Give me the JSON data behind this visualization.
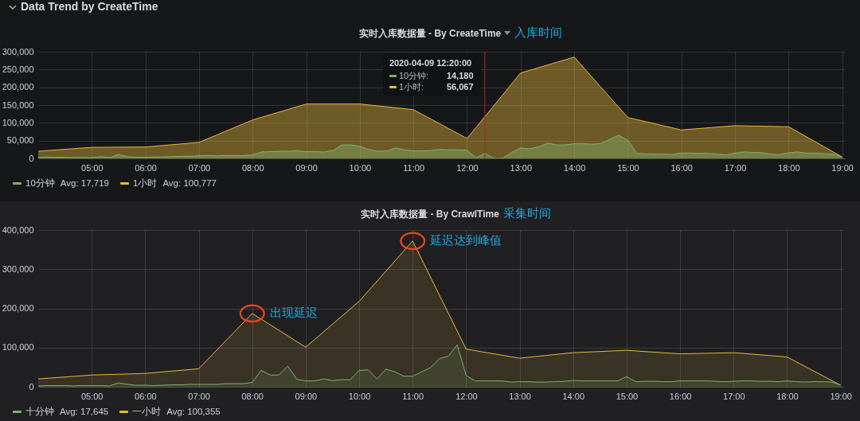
{
  "chart_data": [
    {
      "type": "area",
      "title": "实时入库数据量 - By CreateTime",
      "annotations": [
        "Data Trend by CreateTime",
        "入库时间",
        "Avg: 17,719",
        "Avg: 100,777",
        "10分钟:",
        "14,180",
        "1小时:",
        "56,067"
      ],
      "series": [
        {
          "name": "10分钟",
          "color": "#7eb26d",
          "x": [
            4,
            4.167,
            4.333,
            4.5,
            4.667,
            4.833,
            5,
            5.167,
            5.333,
            5.5,
            5.667,
            5.833,
            6,
            6.167,
            6.333,
            6.5,
            6.667,
            6.833,
            7,
            7.167,
            7.333,
            7.5,
            7.667,
            7.833,
            8,
            8.167,
            8.333,
            8.5,
            8.667,
            8.833,
            9,
            9.167,
            9.333,
            9.5,
            9.667,
            9.833,
            10,
            10.167,
            10.333,
            10.5,
            10.667,
            10.833,
            11,
            11.167,
            11.333,
            11.5,
            11.667,
            11.833,
            12,
            12.167,
            12.333,
            12.5,
            12.667,
            12.833,
            13,
            13.167,
            13.333,
            13.5,
            13.667,
            13.833,
            14,
            14.167,
            14.333,
            14.5,
            14.667,
            14.833,
            15,
            15.167,
            15.333,
            15.5,
            15.667,
            15.833,
            16,
            16.167,
            16.333,
            16.5,
            16.667,
            16.833,
            17,
            17.167,
            17.333,
            17.5,
            17.667,
            17.833,
            18,
            18.167,
            18.333,
            18.5,
            18.667,
            18.833,
            19
          ],
          "values": [
            3000,
            4000,
            3000,
            3000,
            2000,
            2000,
            2000,
            5000,
            2000,
            11000,
            5000,
            3000,
            3000,
            4000,
            4000,
            5000,
            6000,
            6000,
            7000,
            8000,
            7000,
            8000,
            8000,
            8000,
            10000,
            18000,
            19000,
            20000,
            20000,
            21000,
            19000,
            19000,
            18000,
            22000,
            38000,
            38000,
            34000,
            25000,
            20000,
            21000,
            29000,
            24000,
            21000,
            21000,
            22000,
            25000,
            24000,
            24000,
            23000,
            2000,
            14180,
            0,
            0,
            17000,
            29000,
            27000,
            32000,
            43000,
            38000,
            38000,
            41000,
            41000,
            40000,
            42000,
            54000,
            65000,
            51000,
            14000,
            13000,
            12000,
            12000,
            11000,
            15000,
            15000,
            14000,
            14000,
            12000,
            10000,
            15000,
            18000,
            17000,
            16000,
            12000,
            11000,
            16000,
            18000,
            15000,
            15000,
            13000,
            12000,
            4000
          ]
        },
        {
          "name": "1小时",
          "color": "#eab839",
          "x": [
            4,
            5,
            6,
            7,
            8,
            9,
            10,
            11,
            12,
            13,
            14,
            15,
            16,
            17,
            18,
            19
          ],
          "values": [
            20000,
            31000,
            32000,
            45000,
            108000,
            153000,
            153000,
            137000,
            56067,
            240000,
            285000,
            115000,
            80000,
            92000,
            89000,
            4000
          ]
        }
      ],
      "xlim": [
        4,
        19.05
      ],
      "xticks": [
        {
          "value": 5,
          "label": "05:00"
        },
        {
          "value": 6,
          "label": "06:00"
        },
        {
          "value": 7,
          "label": "07:00"
        },
        {
          "value": 8,
          "label": "08:00"
        },
        {
          "value": 9,
          "label": "09:00"
        },
        {
          "value": 10,
          "label": "10:00"
        },
        {
          "value": 11,
          "label": "11:00"
        },
        {
          "value": 12,
          "label": "12:00"
        },
        {
          "value": 13,
          "label": "13:00"
        },
        {
          "value": 14,
          "label": "14:00"
        },
        {
          "value": 15,
          "label": "15:00"
        },
        {
          "value": 16,
          "label": "16:00"
        },
        {
          "value": 17,
          "label": "17:00"
        },
        {
          "value": 18,
          "label": "18:00"
        },
        {
          "value": 19,
          "label": "19:00"
        }
      ],
      "ylim": [
        0,
        300000
      ],
      "yticks": [
        0,
        {
          "value": 50000,
          "label": "50,000"
        },
        {
          "value": 100000,
          "label": "100,000"
        },
        {
          "value": 150000,
          "label": "150,000"
        },
        {
          "value": 200000,
          "label": "200,000"
        },
        {
          "value": 250000,
          "label": "250,000"
        },
        {
          "value": 300000,
          "label": "300,000"
        }
      ],
      "grid": true,
      "legend": "bottom left",
      "ref_lines": [
        {
          "axis": "x",
          "value": 12.333,
          "label": "2020-04-09 12:20:00",
          "color": "#a52a2a"
        }
      ]
    },
    {
      "type": "area",
      "title": "实时入库数据量 - By CrawlTime",
      "annotations": [
        "采集时间",
        "Avg: 17,645",
        "Avg: 100,355",
        {
          "text": "出现延迟",
          "x": 8,
          "y": 187000
        },
        {
          "text": "延迟达到峰值",
          "x": 11,
          "y": 372000
        }
      ],
      "series": [
        {
          "name": "十分钟",
          "color": "#7eb26d",
          "x": [
            4,
            4.167,
            4.333,
            4.5,
            4.667,
            4.833,
            5,
            5.167,
            5.333,
            5.5,
            5.667,
            5.833,
            6,
            6.167,
            6.333,
            6.5,
            6.667,
            6.833,
            7,
            7.167,
            7.333,
            7.5,
            7.667,
            7.833,
            8,
            8.167,
            8.333,
            8.5,
            8.667,
            8.833,
            9,
            9.167,
            9.333,
            9.5,
            9.667,
            9.833,
            10,
            10.167,
            10.333,
            10.5,
            10.667,
            10.833,
            11,
            11.167,
            11.333,
            11.5,
            11.667,
            11.833,
            12,
            12.167,
            12.333,
            12.5,
            12.667,
            12.833,
            13,
            13.167,
            13.333,
            13.5,
            13.667,
            13.833,
            14,
            14.167,
            14.333,
            14.5,
            14.667,
            14.833,
            15,
            15.167,
            15.333,
            15.5,
            15.667,
            15.833,
            16,
            16.167,
            16.333,
            16.5,
            16.667,
            16.833,
            17,
            17.167,
            17.333,
            17.5,
            17.667,
            17.833,
            18,
            18.167,
            18.333,
            18.5,
            18.667,
            18.833,
            19
          ],
          "values": [
            2000,
            3000,
            3000,
            3000,
            2000,
            3000,
            3000,
            3000,
            2000,
            10000,
            6000,
            4000,
            4000,
            3000,
            4000,
            5000,
            5000,
            6000,
            6000,
            6000,
            6000,
            8000,
            8000,
            8000,
            11000,
            42000,
            30000,
            30000,
            53000,
            19000,
            15000,
            15000,
            20000,
            16000,
            18000,
            18000,
            42000,
            43000,
            20000,
            45000,
            38000,
            27000,
            27000,
            38000,
            49000,
            72000,
            78000,
            107000,
            29000,
            15000,
            15000,
            15000,
            15000,
            12000,
            13000,
            13000,
            12000,
            12000,
            13000,
            14000,
            16000,
            15000,
            15000,
            15000,
            15000,
            15000,
            26000,
            13000,
            14000,
            14000,
            13000,
            13000,
            15000,
            15000,
            15000,
            15000,
            14000,
            13000,
            14000,
            15000,
            15000,
            14000,
            14000,
            13000,
            15000,
            13000,
            12000,
            13000,
            13000,
            12000,
            4000
          ]
        },
        {
          "name": "一小时",
          "color": "#eab839",
          "x": [
            4,
            5,
            6,
            7,
            8,
            9,
            10,
            11,
            12,
            13,
            14,
            15,
            16,
            17,
            18,
            19
          ],
          "values": [
            20000,
            30000,
            34000,
            46000,
            187000,
            101000,
            218000,
            372000,
            96000,
            73000,
            87000,
            93000,
            84000,
            87000,
            76000,
            4000
          ]
        }
      ],
      "xlim": [
        4,
        19.05
      ],
      "xticks": [
        {
          "value": 5,
          "label": "05:00"
        },
        {
          "value": 6,
          "label": "06:00"
        },
        {
          "value": 7,
          "label": "07:00"
        },
        {
          "value": 8,
          "label": "08:00"
        },
        {
          "value": 9,
          "label": "09:00"
        },
        {
          "value": 10,
          "label": "10:00"
        },
        {
          "value": 11,
          "label": "11:00"
        },
        {
          "value": 12,
          "label": "12:00"
        },
        {
          "value": 13,
          "label": "13:00"
        },
        {
          "value": 14,
          "label": "14:00"
        },
        {
          "value": 15,
          "label": "15:00"
        },
        {
          "value": 16,
          "label": "16:00"
        },
        {
          "value": 17,
          "label": "17:00"
        },
        {
          "value": 18,
          "label": "18:00"
        },
        {
          "value": 19,
          "label": "19:00"
        }
      ],
      "ylim": [
        0,
        400000
      ],
      "yticks": [
        0,
        {
          "value": 100000,
          "label": "100,000"
        },
        {
          "value": 200000,
          "label": "200,000"
        },
        {
          "value": 300000,
          "label": "300,000"
        },
        {
          "value": 400000,
          "label": "400,000"
        }
      ],
      "grid": true,
      "legend": "bottom left"
    }
  ]
}
